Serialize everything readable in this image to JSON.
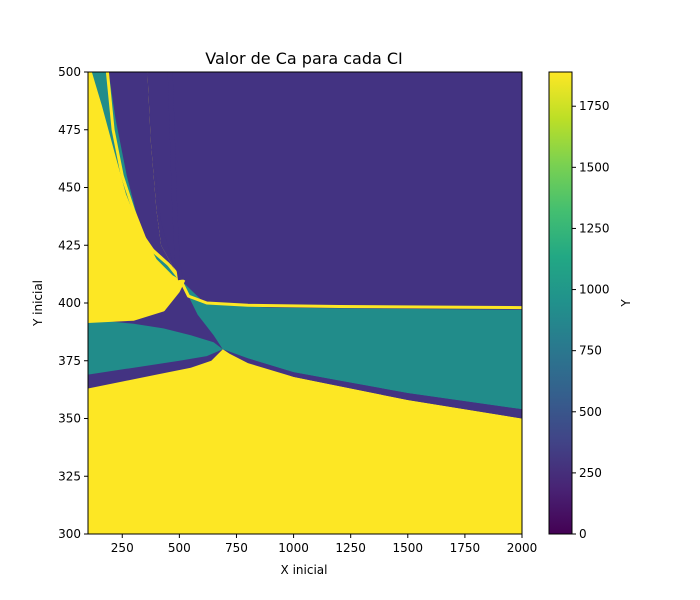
{
  "chart_data": {
    "type": "heatmap",
    "title": "Valor de Ca para cada CI",
    "xlabel": "X inicial",
    "ylabel": "Y inicial",
    "xlim": [
      100,
      2000
    ],
    "ylim": [
      300,
      500
    ],
    "x_ticks": [
      250,
      500,
      750,
      1000,
      1250,
      1500,
      1750,
      2000
    ],
    "y_ticks": [
      300,
      325,
      350,
      375,
      400,
      425,
      450,
      475,
      500
    ],
    "colorbar": {
      "label": "Y",
      "colormap": "viridis",
      "range": [
        0,
        1890
      ],
      "ticks": [
        0,
        250,
        500,
        750,
        1000,
        1250,
        1500,
        1750
      ]
    },
    "levels": [
      {
        "name": "low",
        "value": 250,
        "color": "#433382"
      },
      {
        "name": "mid",
        "value": 1000,
        "color": "#218C8A"
      },
      {
        "name": "high",
        "value": 1890,
        "color": "#FDE724"
      }
    ],
    "regions": [
      {
        "level": "high",
        "points": [
          [
            100,
            300
          ],
          [
            2000,
            300
          ],
          [
            2000,
            350
          ],
          [
            1500,
            358
          ],
          [
            1000,
            368
          ],
          [
            800,
            375
          ],
          [
            690,
            380
          ],
          [
            520,
            410
          ],
          [
            470,
            416
          ],
          [
            420,
            425
          ],
          [
            400,
            440
          ],
          [
            375,
            470
          ],
          [
            360,
            500
          ],
          [
            100,
            500
          ]
        ]
      },
      {
        "level": "low",
        "points": [
          [
            100,
            363
          ],
          [
            200,
            365
          ],
          [
            400,
            369
          ],
          [
            550,
            372
          ],
          [
            640,
            375
          ],
          [
            690,
            380
          ],
          [
            520,
            410
          ],
          [
            495,
            405
          ],
          [
            430,
            397
          ],
          [
            300,
            393
          ],
          [
            200,
            392
          ],
          [
            100,
            392
          ]
        ]
      },
      {
        "level": "mid",
        "points": [
          [
            100,
            369
          ],
          [
            300,
            372
          ],
          [
            500,
            375
          ],
          [
            620,
            377
          ],
          [
            690,
            380
          ],
          [
            650,
            383
          ],
          [
            550,
            386
          ],
          [
            430,
            389
          ],
          [
            300,
            391
          ],
          [
            200,
            392
          ],
          [
            100,
            392
          ]
        ]
      },
      {
        "level": "low",
        "points": [
          [
            100,
            500
          ],
          [
            360,
            500
          ],
          [
            375,
            470
          ],
          [
            400,
            440
          ],
          [
            420,
            425
          ],
          [
            470,
            416
          ],
          [
            505,
            410
          ],
          [
            450,
            417
          ],
          [
            360,
            425
          ],
          [
            300,
            440
          ],
          [
            250,
            455
          ],
          [
            210,
            475
          ],
          [
            185,
            500
          ]
        ]
      },
      {
        "level": "mid",
        "points": [
          [
            110,
            500
          ],
          [
            190,
            500
          ],
          [
            220,
            480
          ],
          [
            270,
            455
          ],
          [
            330,
            432
          ],
          [
            400,
            419
          ],
          [
            470,
            412
          ],
          [
            505,
            410
          ],
          [
            460,
            416
          ],
          [
            390,
            422
          ],
          [
            320,
            432
          ],
          [
            260,
            447
          ],
          [
            210,
            465
          ],
          [
            155,
            485
          ],
          [
            125,
            495
          ]
        ]
      },
      {
        "level": "low",
        "points": [
          [
            505,
            410
          ],
          [
            540,
            403
          ],
          [
            620,
            400
          ],
          [
            800,
            399
          ],
          [
            1200,
            398.5
          ],
          [
            2000,
            398
          ],
          [
            2000,
            500
          ],
          [
            360,
            500
          ],
          [
            380,
            470
          ],
          [
            420,
            435
          ],
          [
            470,
            418
          ]
        ]
      },
      {
        "level": "mid",
        "points": [
          [
            505,
            410
          ],
          [
            600,
            401
          ],
          [
            700,
            399
          ],
          [
            900,
            398
          ],
          [
            1400,
            397.5
          ],
          [
            2000,
            397
          ],
          [
            2000,
            354
          ],
          [
            1500,
            361
          ],
          [
            1000,
            370
          ],
          [
            800,
            376
          ],
          [
            690,
            380
          ],
          [
            650,
            386
          ],
          [
            580,
            395
          ]
        ]
      },
      {
        "level": "low",
        "points": [
          [
            690,
            380
          ],
          [
            800,
            376
          ],
          [
            1000,
            370
          ],
          [
            1500,
            361
          ],
          [
            2000,
            354
          ],
          [
            2000,
            350
          ],
          [
            1500,
            358
          ],
          [
            1000,
            368
          ],
          [
            800,
            374
          ],
          [
            720,
            378
          ]
        ]
      }
    ],
    "boundaries": [
      {
        "level": "high",
        "points": [
          [
            110,
            500
          ],
          [
            125,
            495
          ],
          [
            155,
            485
          ],
          [
            210,
            465
          ],
          [
            260,
            447
          ],
          [
            320,
            432
          ],
          [
            390,
            422
          ],
          [
            460,
            416
          ],
          [
            505,
            410
          ]
        ]
      },
      {
        "level": "high",
        "points": [
          [
            185,
            500
          ],
          [
            210,
            475
          ],
          [
            250,
            455
          ],
          [
            300,
            440
          ],
          [
            360,
            425
          ],
          [
            450,
            417
          ],
          [
            505,
            410
          ]
        ]
      },
      {
        "level": "high",
        "points": [
          [
            505,
            410
          ],
          [
            540,
            403
          ],
          [
            620,
            400
          ],
          [
            800,
            399
          ],
          [
            1200,
            398.5
          ],
          [
            2000,
            398
          ]
        ]
      },
      {
        "level": "high",
        "points": [
          [
            100,
            392
          ],
          [
            300,
            393
          ],
          [
            430,
            397
          ],
          [
            495,
            405
          ],
          [
            520,
            410
          ]
        ]
      },
      {
        "level": "low",
        "points": [
          [
            460,
            500
          ],
          [
            470,
            470
          ],
          [
            480,
            440
          ],
          [
            490,
            420
          ],
          [
            505,
            410
          ]
        ]
      }
    ]
  }
}
